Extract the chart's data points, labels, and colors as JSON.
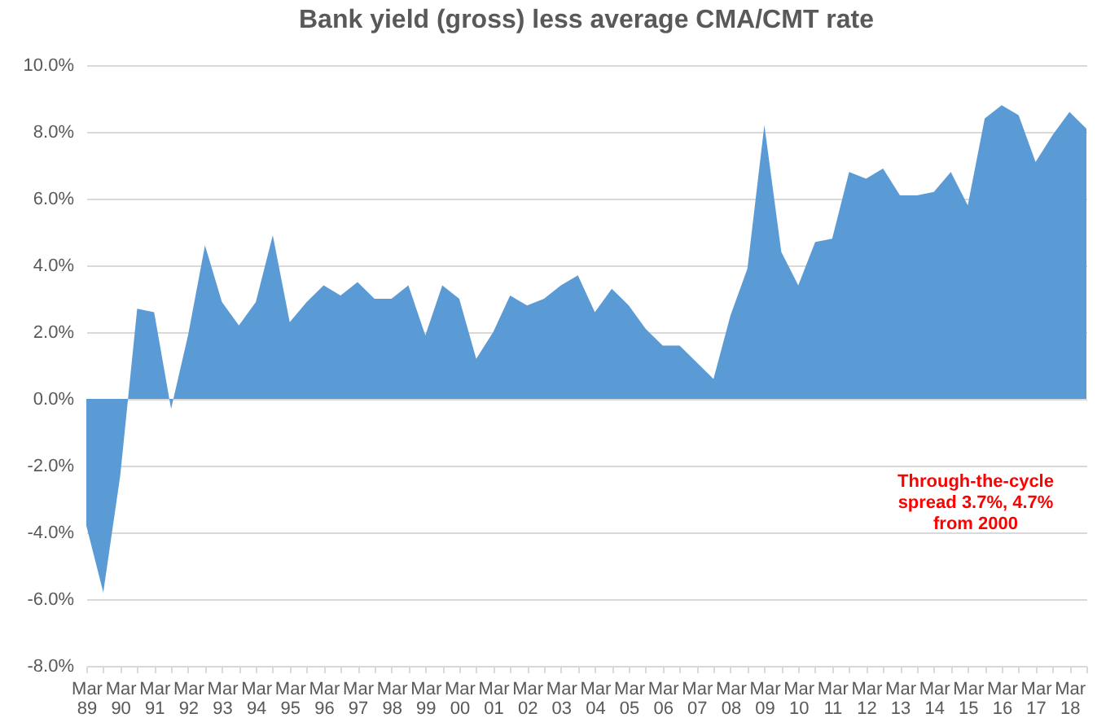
{
  "chart_data": {
    "type": "area",
    "title": "Bank yield (gross) less average CMA/CMT rate",
    "categories": [
      "Mar 89",
      null,
      "Mar 90",
      null,
      "Mar 91",
      null,
      "Mar 92",
      null,
      "Mar 93",
      null,
      "Mar 94",
      null,
      "Mar 95",
      null,
      "Mar 96",
      null,
      "Mar 97",
      null,
      "Mar 98",
      null,
      "Mar 99",
      null,
      "Mar 00",
      null,
      "Mar 01",
      null,
      "Mar 02",
      null,
      "Mar 03",
      null,
      "Mar 04",
      null,
      "Mar 05",
      null,
      "Mar 06",
      null,
      "Mar 07",
      null,
      "Mar 08",
      null,
      "Mar 09",
      null,
      "Mar 10",
      null,
      "Mar 11",
      null,
      "Mar 12",
      null,
      "Mar 13",
      null,
      "Mar 14",
      null,
      "Mar 15",
      null,
      "Mar 16",
      null,
      "Mar 17",
      null,
      "Mar 18",
      null
    ],
    "series": [
      {
        "color": "#5b9bd5",
        "values": [
          -3.8,
          -5.8,
          -2.3,
          2.7,
          2.6,
          -0.3,
          1.9,
          4.6,
          2.9,
          2.2,
          2.9,
          4.9,
          2.3,
          2.9,
          3.4,
          3.1,
          3.5,
          3.0,
          3.0,
          3.4,
          1.9,
          3.4,
          3.0,
          1.2,
          2.0,
          3.1,
          2.8,
          3.0,
          3.4,
          3.7,
          2.6,
          3.3,
          2.8,
          2.1,
          1.6,
          1.6,
          1.1,
          0.6,
          2.5,
          3.9,
          8.2,
          4.4,
          3.4,
          4.7,
          4.8,
          6.8,
          6.6,
          6.9,
          6.1,
          6.1,
          6.2,
          6.8,
          5.8,
          8.4,
          8.8,
          8.5,
          7.1,
          7.9,
          8.6,
          8.1
        ]
      }
    ],
    "ylim": [
      -8,
      10
    ],
    "yticks": [
      {
        "value": -8,
        "label": "-8.0%"
      },
      {
        "value": -6,
        "label": "-6.0%"
      },
      {
        "value": -4,
        "label": "-4.0%"
      },
      {
        "value": -2,
        "label": "-2.0%"
      },
      {
        "value": 0,
        "label": "0.0%"
      },
      {
        "value": 2,
        "label": "2.0%"
      },
      {
        "value": 4,
        "label": "4.0%"
      },
      {
        "value": 6,
        "label": "6.0%"
      },
      {
        "value": 8,
        "label": "8.0%"
      },
      {
        "value": 10,
        "label": "10.0%"
      }
    ],
    "grid": "y",
    "annotations": [
      "Through-the-cycle\nspread 3.7%, 4.7%\nfrom 2000"
    ]
  }
}
